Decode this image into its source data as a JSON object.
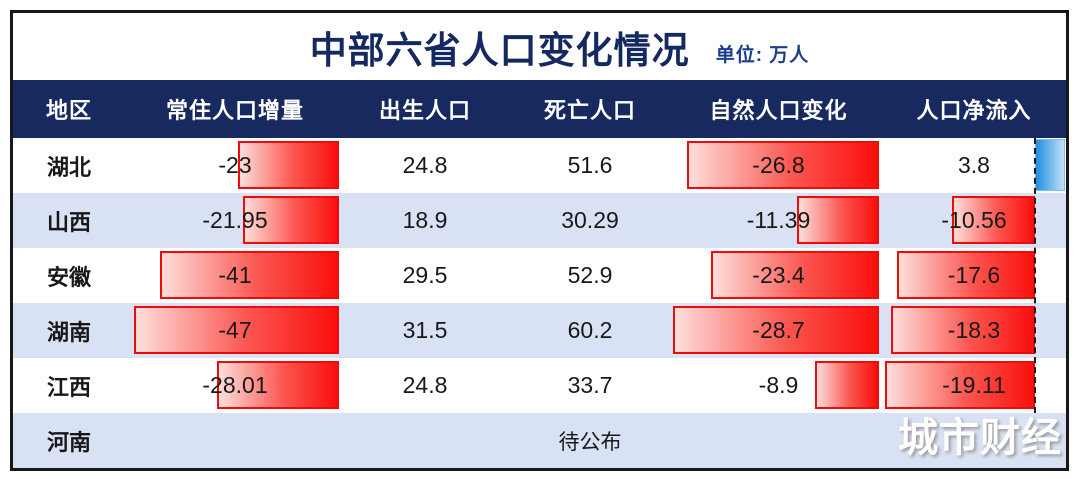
{
  "title": "中部六省人口变化情况",
  "unit_label": "单位: 万人",
  "watermark": "城市财经",
  "pending_label": "待公布",
  "colors": {
    "header_bg": "#17295e",
    "title_text": "#14295f",
    "unit_text": "#1c3c8f",
    "row_alt": "#d9e2f4",
    "frame_border": "#171717",
    "bar_negative": "#fa0f0c",
    "bar_negative_light": "#fddedb",
    "bar_negative_border": "#ee0b08",
    "bar_positive": "#1f8edf",
    "bar_positive_light": "#c3e0f7"
  },
  "chart_data": {
    "type": "table",
    "title": "中部六省人口变化情况",
    "unit": "万人",
    "columns": [
      "地区",
      "常住人口增量",
      "出生人口",
      "死亡人口",
      "自然人口变化",
      "人口净流入"
    ],
    "regions": [
      "湖北",
      "山西",
      "安徽",
      "湖南",
      "江西",
      "河南"
    ],
    "series": [
      {
        "name": "常住人口增量",
        "values": [
          -23,
          -21.95,
          -41,
          -47,
          -28.01,
          null
        ]
      },
      {
        "name": "出生人口",
        "values": [
          24.8,
          18.9,
          29.5,
          31.5,
          24.8,
          null
        ]
      },
      {
        "name": "死亡人口",
        "values": [
          51.6,
          30.29,
          52.9,
          60.2,
          33.7,
          null
        ]
      },
      {
        "name": "自然人口变化",
        "values": [
          -26.8,
          -11.39,
          -23.4,
          -28.7,
          -8.9,
          null
        ]
      },
      {
        "name": "人口净流入",
        "values": [
          3.8,
          -10.56,
          -17.6,
          -18.3,
          -19.11,
          null
        ]
      }
    ],
    "pending_note": {
      "region": "河南",
      "label": "待公布",
      "shown_in_column": "死亡人口"
    },
    "bar_style": "negative values drawn as right-anchored red gradient data bars, positive values as blue gradient bars from dashed zero axis",
    "row_striping": [
      "white",
      "light-blue"
    ]
  }
}
